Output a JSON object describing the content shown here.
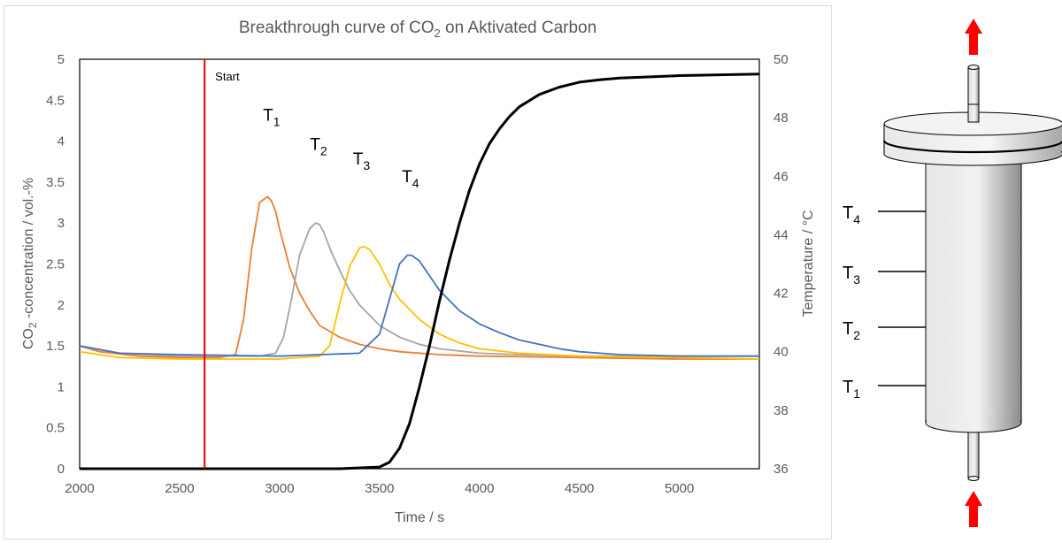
{
  "chart_data": {
    "type": "line",
    "title": "Breakthrough curve of CO",
    "title_sub": "2",
    "title_tail": " on Aktivated Carbon",
    "xlabel": "Time / s",
    "ylabel_left_prefix": "CO",
    "ylabel_left_sub": "2",
    "ylabel_left_tail": " -concentration / vol.-%",
    "ylabel_right": "Temperature / °C",
    "xlim": [
      2000,
      5400
    ],
    "ylim_left": [
      0,
      5
    ],
    "ylim_right": [
      36,
      50
    ],
    "x_ticks": [
      "2000",
      "2500",
      "3000",
      "3500",
      "4000",
      "4500",
      "5000"
    ],
    "y_left_ticks": [
      "0",
      "0.5",
      "1",
      "1.5",
      "2",
      "2.5",
      "3",
      "3.5",
      "4",
      "4.5",
      "5"
    ],
    "y_right_ticks": [
      "36",
      "38",
      "40",
      "42",
      "44",
      "46",
      "48",
      "50"
    ],
    "grid": false,
    "start_marker": {
      "x": 2625,
      "label": "Start",
      "color": "#e00000"
    },
    "series": [
      {
        "axis": "left",
        "color": "#000000",
        "x": [
          2000,
          3300,
          3500,
          3550,
          3600,
          3650,
          3700,
          3750,
          3800,
          3850,
          3900,
          3950,
          4000,
          4050,
          4100,
          4150,
          4200,
          4300,
          4400,
          4500,
          4600,
          4700,
          4800,
          5000,
          5200,
          5400
        ],
        "y": [
          0,
          0,
          0.02,
          0.08,
          0.25,
          0.55,
          1.0,
          1.5,
          2.05,
          2.55,
          3.0,
          3.4,
          3.72,
          3.97,
          4.15,
          4.3,
          4.42,
          4.57,
          4.66,
          4.72,
          4.75,
          4.77,
          4.78,
          4.8,
          4.81,
          4.82
        ]
      },
      {
        "axis": "right",
        "name": "T1",
        "label_main": "T",
        "label_sub": "1",
        "label_x": 2960,
        "label_y": 47.9,
        "color": "#ed7d31",
        "x": [
          2000,
          2100,
          2300,
          2500,
          2700,
          2780,
          2820,
          2860,
          2900,
          2940,
          2960,
          2980,
          3000,
          3050,
          3100,
          3150,
          3200,
          3300,
          3400,
          3500,
          3600,
          3800,
          4000,
          4500,
          5000,
          5400
        ],
        "y": [
          40.2,
          40.0,
          39.85,
          39.8,
          39.8,
          39.9,
          41.1,
          43.5,
          45.1,
          45.3,
          45.15,
          44.8,
          44.2,
          42.9,
          42.0,
          41.4,
          40.9,
          40.5,
          40.25,
          40.1,
          40.0,
          39.9,
          39.85,
          39.8,
          39.75,
          39.75
        ]
      },
      {
        "axis": "right",
        "name": "T2",
        "label_main": "T",
        "label_sub": "2",
        "label_x": 3195,
        "label_y": 46.9,
        "color": "#a5a5a5",
        "x": [
          2000,
          2200,
          2500,
          2900,
          2980,
          3020,
          3060,
          3100,
          3150,
          3180,
          3200,
          3220,
          3260,
          3300,
          3350,
          3400,
          3500,
          3600,
          3700,
          3800,
          4000,
          4200,
          4500,
          5000,
          5400
        ],
        "y": [
          40.2,
          39.95,
          39.85,
          39.85,
          39.95,
          40.5,
          41.8,
          43.3,
          44.2,
          44.4,
          44.35,
          44.1,
          43.4,
          42.8,
          42.1,
          41.6,
          40.9,
          40.5,
          40.25,
          40.1,
          39.95,
          39.9,
          39.85,
          39.85,
          39.85
        ]
      },
      {
        "axis": "right",
        "name": "T3",
        "label_main": "T",
        "label_sub": "3",
        "label_x": 3410,
        "label_y": 46.4,
        "color": "#ffc000",
        "x": [
          2000,
          2200,
          2500,
          3000,
          3200,
          3250,
          3300,
          3350,
          3400,
          3420,
          3450,
          3500,
          3550,
          3600,
          3700,
          3800,
          3900,
          4000,
          4200,
          4500,
          5000,
          5400
        ],
        "y": [
          40.0,
          39.8,
          39.75,
          39.75,
          39.85,
          40.2,
          41.6,
          42.9,
          43.55,
          43.6,
          43.5,
          43.0,
          42.3,
          41.8,
          41.1,
          40.6,
          40.3,
          40.1,
          39.95,
          39.85,
          39.8,
          39.75
        ]
      },
      {
        "axis": "right",
        "name": "T4",
        "label_main": "T",
        "label_sub": "4",
        "label_x": 3655,
        "label_y": 45.8,
        "color": "#4472c4",
        "x": [
          2000,
          2200,
          2500,
          3000,
          3400,
          3500,
          3550,
          3600,
          3640,
          3660,
          3700,
          3750,
          3800,
          3900,
          4000,
          4100,
          4200,
          4300,
          4400,
          4500,
          4700,
          5000,
          5400
        ],
        "y": [
          40.2,
          39.95,
          39.9,
          39.85,
          39.95,
          40.6,
          41.8,
          43.0,
          43.3,
          43.3,
          43.1,
          42.6,
          42.1,
          41.4,
          40.95,
          40.65,
          40.4,
          40.25,
          40.1,
          40.0,
          39.9,
          39.85,
          39.85
        ]
      }
    ]
  },
  "column": {
    "sensors": [
      {
        "main": "T",
        "sub": "4"
      },
      {
        "main": "T",
        "sub": "3"
      },
      {
        "main": "T",
        "sub": "2"
      },
      {
        "main": "T",
        "sub": "1"
      }
    ],
    "arrow_color": "#ff0000"
  }
}
